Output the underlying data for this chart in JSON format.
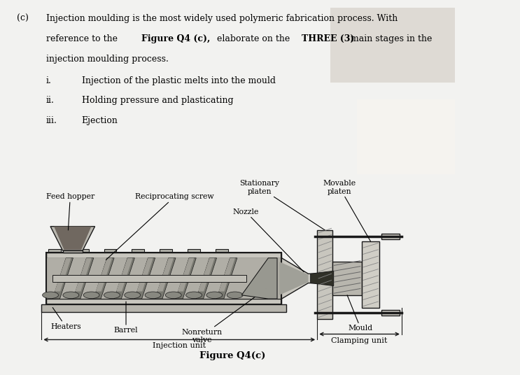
{
  "bg_color": "#f2f2f0",
  "top_panel_bg": "#e8e6e0",
  "diagram_bg": "#d8d6d0",
  "line_color": "#1a1a1a",
  "figure_caption": "Figure Q4(c)",
  "labels": {
    "feed_hopper": "Feed hopper",
    "reciprocating_screw": "Reciprocating screw",
    "stationary_platen": "Stationary\nplaten",
    "movable_platen": "Movable\nplaten",
    "nozzle": "Nozzle",
    "heaters": "Heaters",
    "barrel": "Barrel",
    "nonreturn_valve": "Nonreturn\nvalve",
    "mould": "Mould",
    "injection_unit": "Injection unit",
    "clamping_unit": "Clamping unit"
  }
}
